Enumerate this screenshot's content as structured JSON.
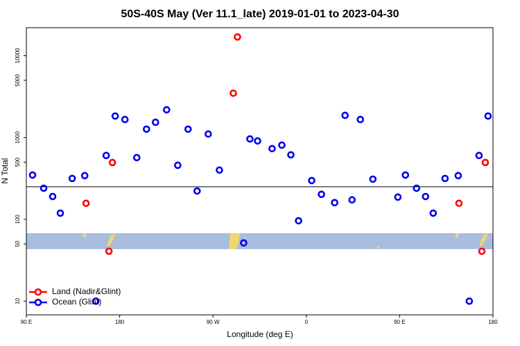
{
  "chart_data": {
    "type": "scatter",
    "title": "50S-40S May (Ver 11.1_late)   2019-01-01 to 2023-04-30",
    "x_label": "Longitude (deg E)",
    "y_label": "N Total",
    "log_y": true,
    "xlim": [
      90,
      540
    ],
    "ylim": [
      6.8,
      22000
    ],
    "xticks": [
      {
        "value": 90,
        "label": "90 E"
      },
      {
        "value": 180,
        "label": "180"
      },
      {
        "value": 270,
        "label": "90 W"
      },
      {
        "value": 360,
        "label": "0"
      },
      {
        "value": 450,
        "label": "90 E"
      },
      {
        "value": 540,
        "label": "180"
      }
    ],
    "yticks": [
      10,
      50,
      100,
      500,
      1000,
      5000,
      10000
    ],
    "reference_line": 250,
    "legend": "bottom-left",
    "series": [
      {
        "name": "Land (Nadir&Glint)",
        "color": "#ff0000",
        "x": [
          147.6,
          169.7,
          173,
          289.6,
          293.6,
          507.2,
          529.3,
          532.6
        ],
        "values": [
          157,
          40.7,
          495,
          3480,
          16950,
          157,
          40.7,
          495
        ]
      },
      {
        "name": "Ocean (Glint)",
        "color": "#0000ee",
        "x": [
          96,
          106.7,
          115.4,
          122.8,
          134.2,
          146.3,
          157,
          167,
          175.7,
          185.1,
          196.5,
          205.9,
          214.6,
          225.3,
          236,
          246,
          254.7,
          265.4,
          276.2,
          299.6,
          305.6,
          313,
          327,
          336.4,
          345.1,
          352.5,
          365.2,
          374.6,
          387.3,
          397.4,
          404.1,
          412.1,
          424.2,
          448.3,
          455.6,
          466.3,
          475,
          482.4,
          493.8,
          506.5,
          517.2,
          526.6,
          535.3
        ],
        "values": [
          348,
          240,
          190,
          119,
          316,
          342,
          10,
          603,
          1830,
          1660,
          568,
          1265,
          1535,
          2180,
          458,
          1265,
          222,
          1103,
          400,
          51.5,
          961,
          908,
          731,
          807,
          614,
          96,
          298,
          202,
          160,
          1866,
          173,
          1660,
          310,
          187,
          348,
          240,
          190,
          119,
          316,
          342,
          10,
          603,
          1830
        ]
      }
    ]
  }
}
